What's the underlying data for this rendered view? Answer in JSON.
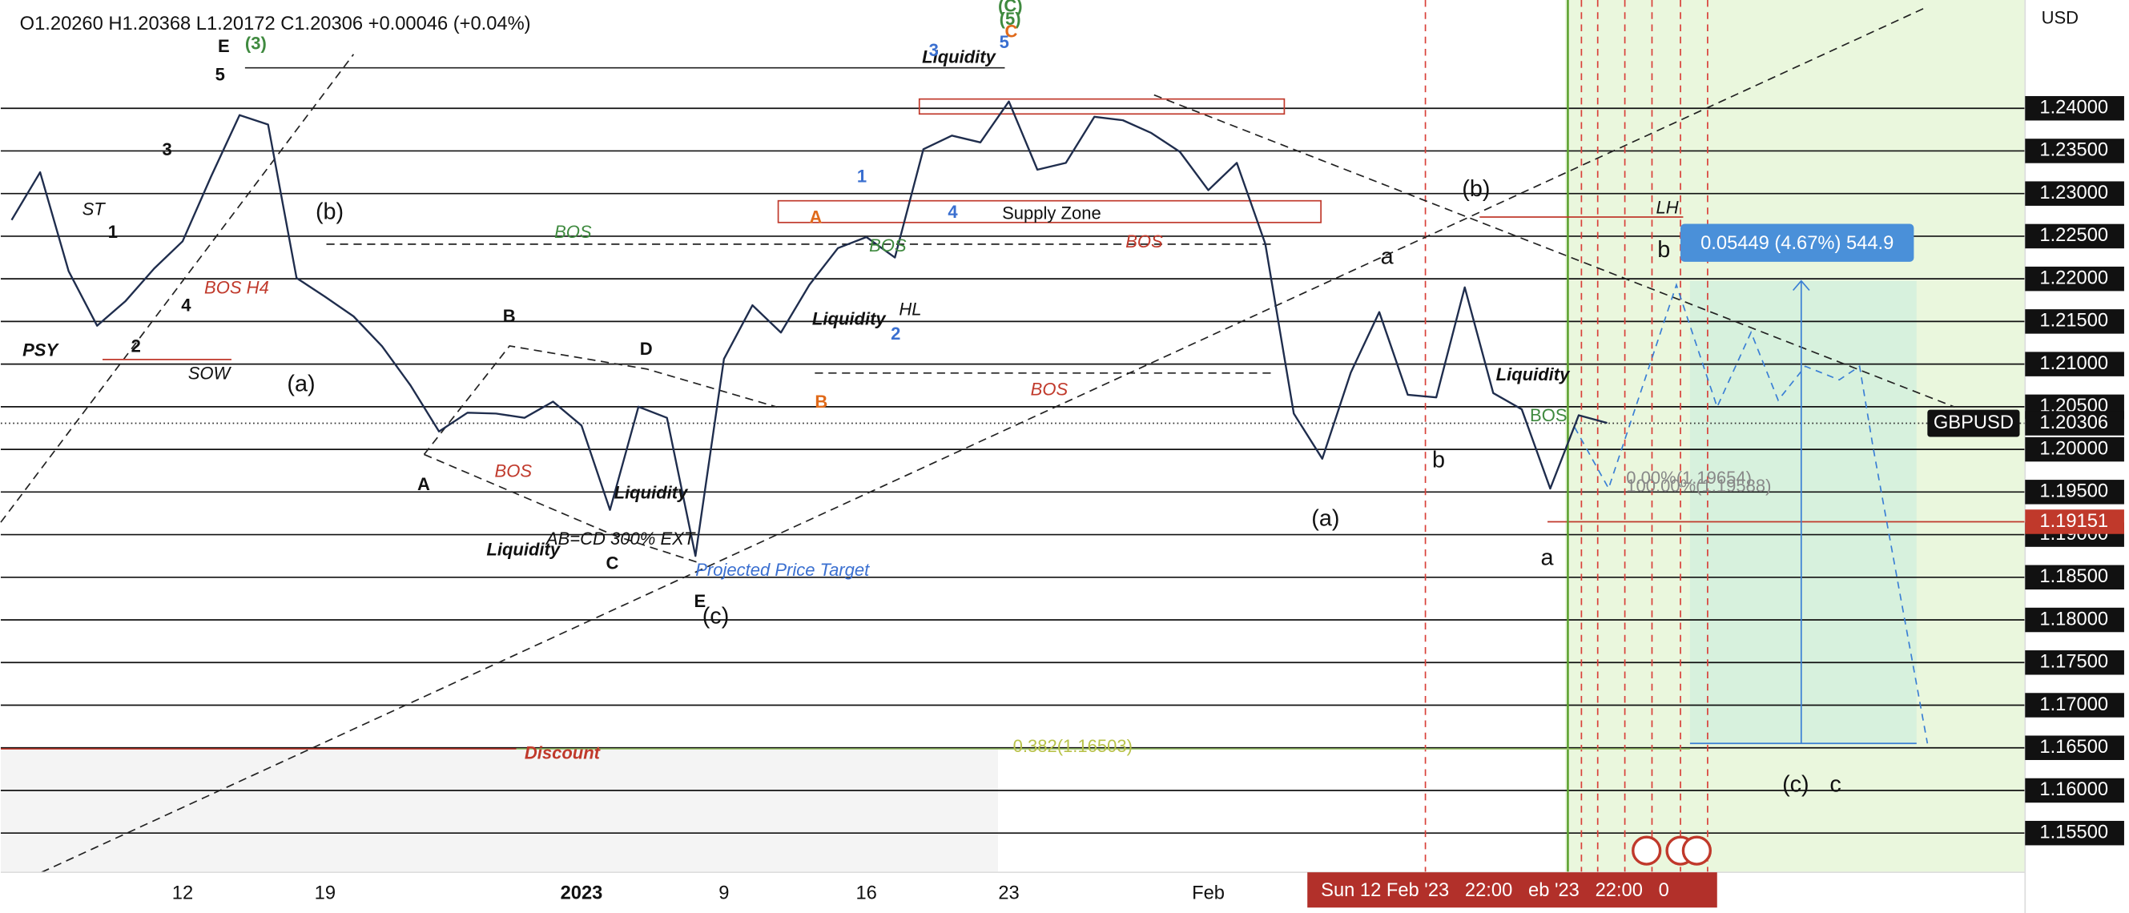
{
  "chart_data": {
    "type": "line",
    "ohlc_header": "O1.20260 H1.20368 L1.20172 C1.20306 +0.00046 (+0.04%)",
    "currency": "USD",
    "categories": [
      null,
      null,
      null,
      null,
      null,
      null,
      "12",
      null,
      null,
      null,
      null,
      "19",
      null,
      null,
      null,
      null,
      null,
      null,
      null,
      null,
      "2023",
      null,
      null,
      null,
      null,
      "9",
      null,
      null,
      null,
      null,
      "16",
      null,
      null,
      null,
      null,
      "23",
      null,
      null,
      null,
      null,
      null,
      null,
      "Feb",
      null,
      null,
      null,
      null,
      null,
      null,
      null,
      null,
      null,
      null,
      null,
      null,
      null,
      null
    ],
    "series": [
      {
        "name": "GBPUSD",
        "color": "#1f2d4d",
        "values": [
          1.2269,
          1.2325,
          1.2209,
          1.2145,
          1.2174,
          1.2212,
          1.2244,
          1.232,
          1.2392,
          1.2381,
          1.2201,
          1.2179,
          1.2156,
          1.2121,
          1.2075,
          1.2021,
          1.2043,
          1.2042,
          1.2037,
          1.2056,
          1.2028,
          1.1929,
          1.205,
          1.2037,
          1.1875,
          1.2106,
          1.2169,
          1.2137,
          1.2193,
          1.2236,
          1.2249,
          1.2225,
          1.2352,
          1.2368,
          1.236,
          1.2408,
          1.2328,
          1.2336,
          1.239,
          1.2386,
          1.2371,
          1.2349,
          1.2304,
          1.2336,
          1.2241,
          1.2042,
          1.1989,
          1.209,
          1.2161,
          1.2064,
          1.2061,
          1.219,
          1.2066,
          1.2047,
          1.1954,
          1.204,
          1.2031
        ]
      }
    ],
    "last_price": 1.20306,
    "alert_price": 1.19151,
    "ylim": [
      1.1504,
      1.2527
    ],
    "yticks": [
      {
        "value": 1.155,
        "label": "1.15500"
      },
      {
        "value": 1.16,
        "label": "1.16000"
      },
      {
        "value": 1.165,
        "label": "1.16500"
      },
      {
        "value": 1.17,
        "label": "1.17000"
      },
      {
        "value": 1.175,
        "label": "1.17500"
      },
      {
        "value": 1.18,
        "label": "1.18000"
      },
      {
        "value": 1.185,
        "label": "1.18500"
      },
      {
        "value": 1.19,
        "label": "1.19000"
      },
      {
        "value": 1.195,
        "label": "1.19500"
      },
      {
        "value": 1.2,
        "label": "1.20000"
      },
      {
        "value": 1.205,
        "label": "1.20500"
      },
      {
        "value": 1.21,
        "label": "1.21000"
      },
      {
        "value": 1.215,
        "label": "1.21500"
      },
      {
        "value": 1.22,
        "label": "1.22000"
      },
      {
        "value": 1.225,
        "label": "1.22500"
      },
      {
        "value": 1.23,
        "label": "1.23000"
      },
      {
        "value": 1.235,
        "label": "1.23500"
      },
      {
        "value": 1.24,
        "label": "1.24000"
      }
    ],
    "grid": true,
    "measure_label": "0.05449 (4.67%) 544.9",
    "crosshair_time_label": "Sun 12 Feb '23   22:00   eb '23   22:00   0",
    "annotations": [
      "E",
      "(3)",
      "5",
      "3",
      "ST",
      "1",
      "(b)",
      "4",
      "2",
      "BOS H4",
      "PSY",
      "SOW",
      "(a)",
      "BOS",
      "B",
      "A",
      "BOS",
      "D",
      "Liquidity",
      "AB=CD 300% EXT",
      "C",
      "Liquidity",
      "E",
      "(c)",
      "Projected Price Target",
      "A",
      "1",
      "4",
      "Supply Zone",
      "BOS",
      "Liquidity",
      "HL",
      "2",
      "B",
      "BOS",
      "BOS",
      "Liquidity",
      "(C)",
      "(5)",
      "C",
      "5",
      "3",
      "(b)",
      "a",
      "LH",
      "b",
      "Liquidity",
      "BOS",
      "b",
      "(a)",
      "a",
      "0.00%(1.19654)",
      "100.00%(1.19588)",
      "Discount",
      "0.382(1.16503)",
      "(c)",
      "c"
    ]
  }
}
